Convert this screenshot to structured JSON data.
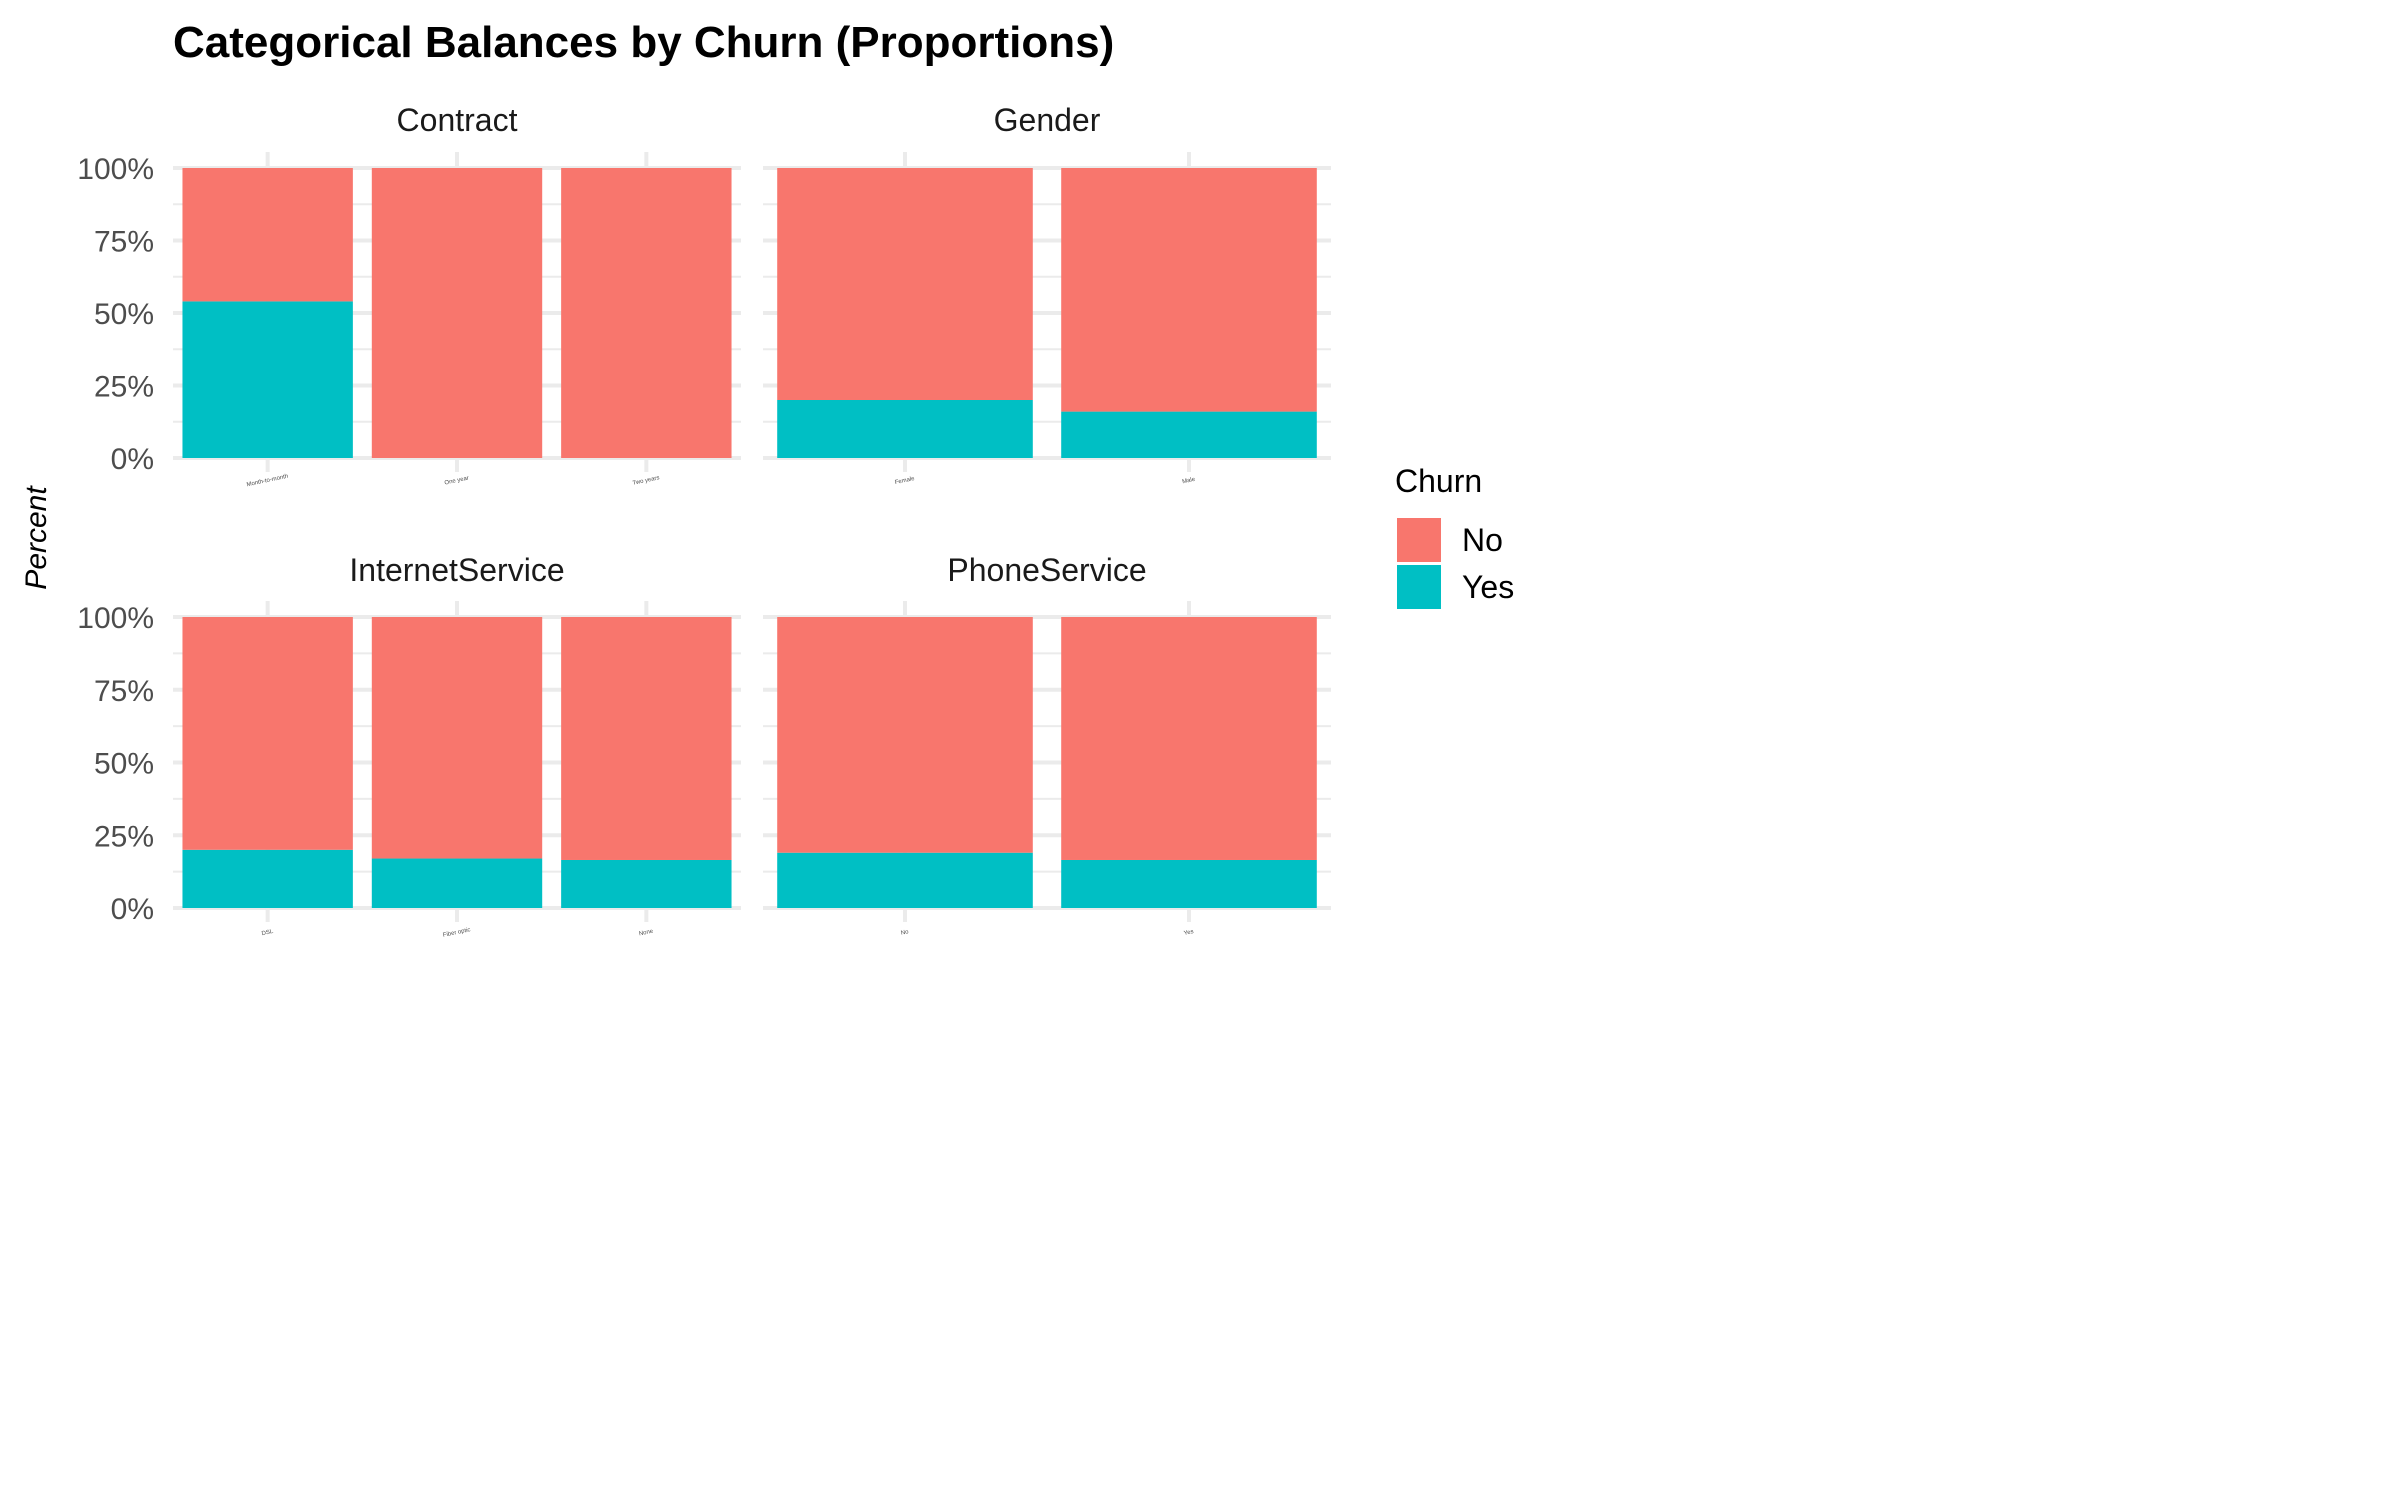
{
  "chart_data": {
    "type": "bar",
    "stacked": true,
    "title": "Categorical Balances by Churn (Proportions)",
    "ylabel": "Percent",
    "xlabel": "",
    "ylim": [
      0,
      1
    ],
    "yticks": [
      "0%",
      "25%",
      "50%",
      "75%",
      "100%"
    ],
    "grid": true,
    "legend": {
      "title": "Churn",
      "position": "right",
      "entries": [
        {
          "name": "No",
          "color": "#F8766D"
        },
        {
          "name": "Yes",
          "color": "#00BFC4"
        }
      ]
    },
    "facets": [
      {
        "name": "Contract",
        "categories": [
          "Month-to-month",
          "One year",
          "Two years"
        ],
        "series": [
          {
            "name": "No",
            "values": [
              0.46,
              1.0,
              1.0
            ]
          },
          {
            "name": "Yes",
            "values": [
              0.54,
              0.0,
              0.0
            ]
          }
        ]
      },
      {
        "name": "Gender",
        "categories": [
          "Female",
          "Male"
        ],
        "series": [
          {
            "name": "No",
            "values": [
              0.8,
              0.84
            ]
          },
          {
            "name": "Yes",
            "values": [
              0.2,
              0.16
            ]
          }
        ]
      },
      {
        "name": "InternetService",
        "categories": [
          "DSL",
          "Fiber optic",
          "None"
        ],
        "series": [
          {
            "name": "No",
            "values": [
              0.8,
              0.83,
              0.835
            ]
          },
          {
            "name": "Yes",
            "values": [
              0.2,
              0.17,
              0.165
            ]
          }
        ]
      },
      {
        "name": "PhoneService",
        "categories": [
          "No",
          "Yes"
        ],
        "series": [
          {
            "name": "No",
            "values": [
              0.81,
              0.835
            ]
          },
          {
            "name": "Yes",
            "values": [
              0.19,
              0.165
            ]
          }
        ]
      }
    ]
  }
}
